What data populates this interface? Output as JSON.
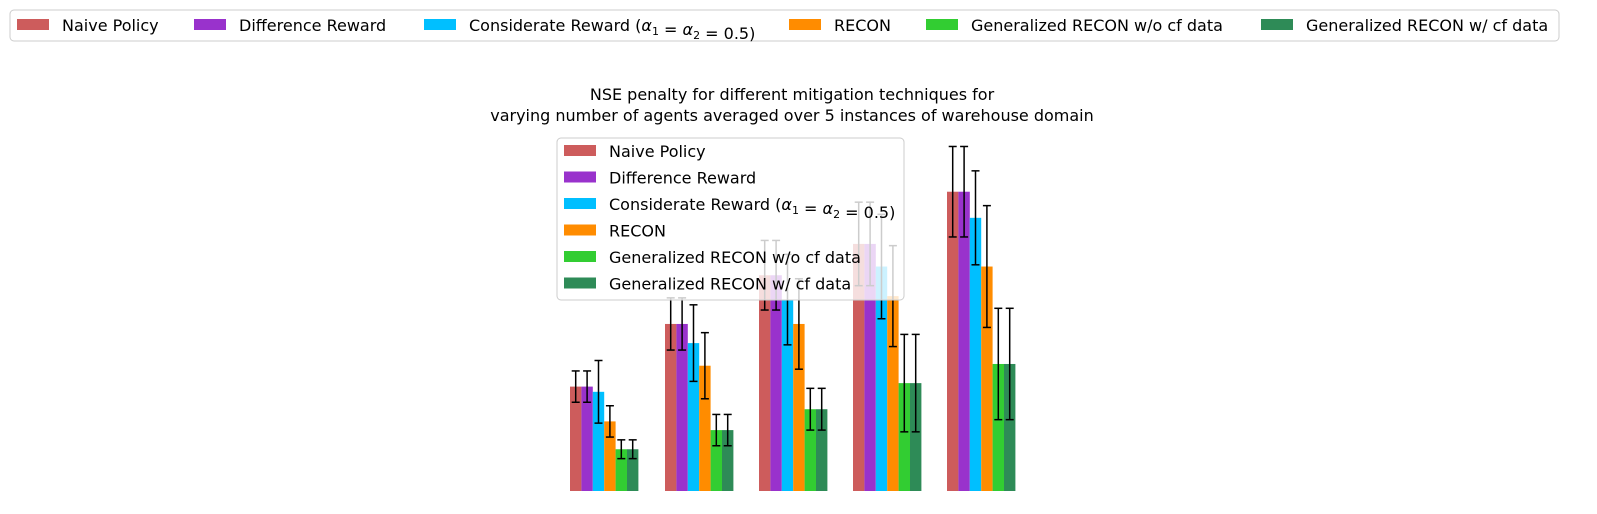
{
  "chart_data": {
    "type": "bar",
    "title": "NSE penalty for different mitigation techniques for\nvarying number of agents averaged over 5 instances of warehouse domain",
    "xlabel": "",
    "ylabel": "",
    "categories": [
      "",
      "",
      "",
      "",
      ""
    ],
    "ylim": [
      0,
      100
    ],
    "grid": false,
    "series": [
      {
        "name": "Naive Policy",
        "color": "#cd5c5c",
        "values": [
          30,
          48,
          62,
          71,
          86
        ],
        "errors": [
          4.5,
          7.5,
          10,
          12,
          13
        ]
      },
      {
        "name": "Difference Reward",
        "color": "#9932cc",
        "values": [
          30,
          48,
          62,
          71,
          86
        ],
        "errors": [
          4.5,
          7.5,
          10,
          12,
          13
        ]
      },
      {
        "name": "Considerate Reward (α1 = α2 = 0.5)",
        "color": "#00bfff",
        "values": [
          28.5,
          42.5,
          55,
          64.5,
          78.5
        ],
        "errors": [
          9,
          11,
          13,
          15,
          13.5
        ]
      },
      {
        "name": "RECON",
        "color": "#ff8c00",
        "values": [
          20,
          36,
          48,
          56,
          64.5
        ],
        "errors": [
          4.5,
          9.5,
          13,
          14.5,
          17.5
        ]
      },
      {
        "name": "Generalized RECON w/o cf data",
        "color": "#32cd32",
        "values": [
          12,
          17.5,
          23.5,
          31,
          36.5
        ],
        "errors": [
          2.7,
          4.5,
          6,
          14,
          16
        ]
      },
      {
        "name": "Generalized RECON w/ cf data",
        "color": "#2e8b57",
        "values": [
          12,
          17.5,
          23.5,
          31,
          36.5
        ],
        "errors": [
          2.7,
          4.5,
          6,
          14,
          16
        ]
      }
    ],
    "legend": {
      "top": "top (outside, horizontal)",
      "inner": "upper-center"
    }
  }
}
